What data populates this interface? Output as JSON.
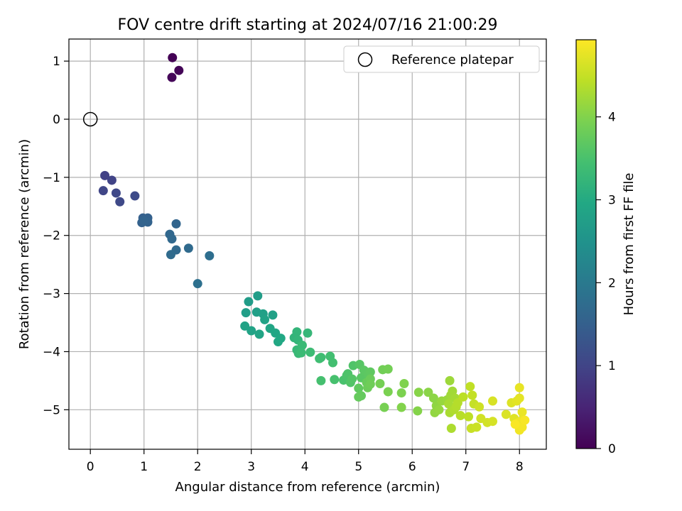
{
  "chart_data": {
    "type": "scatter",
    "title": "FOV centre drift starting at 2024/07/16 21:00:29",
    "xlabel": "Angular distance from reference (arcmin)",
    "ylabel": "Rotation from reference (arcmin)",
    "xlim": [
      -0.4,
      8.5
    ],
    "ylim": [
      -5.68,
      1.38
    ],
    "xticks": [
      0,
      1,
      2,
      3,
      4,
      5,
      6,
      7,
      8
    ],
    "yticks": [
      1,
      0,
      -1,
      -2,
      -3,
      -4,
      -5
    ],
    "grid": true,
    "legend": {
      "label": "Reference platepar",
      "placement": "top-right"
    },
    "colorbar": {
      "label": "Hours from first FF file",
      "range": [
        0,
        4.93
      ],
      "ticks": [
        0,
        1,
        2,
        3,
        4
      ],
      "colormap": "viridis"
    },
    "reference_point": {
      "x": 0,
      "y": 0
    },
    "points": [
      [
        1.53,
        1.06,
        0.02
      ],
      [
        1.65,
        0.84,
        0.05
      ],
      [
        1.52,
        0.72,
        0.08
      ],
      [
        0.27,
        -0.97,
        0.95
      ],
      [
        0.4,
        -1.05,
        0.98
      ],
      [
        0.24,
        -1.23,
        1.02
      ],
      [
        0.48,
        -1.27,
        1.05
      ],
      [
        0.55,
        -1.42,
        1.08
      ],
      [
        0.83,
        -1.32,
        1.12
      ],
      [
        0.98,
        -1.7,
        1.5
      ],
      [
        1.07,
        -1.7,
        1.52
      ],
      [
        0.96,
        -1.78,
        1.54
      ],
      [
        1.07,
        -1.77,
        1.56
      ],
      [
        1.0,
        -1.75,
        1.58
      ],
      [
        1.6,
        -1.8,
        1.6
      ],
      [
        1.48,
        -1.98,
        1.64
      ],
      [
        1.52,
        -2.06,
        1.66
      ],
      [
        1.6,
        -2.25,
        1.68
      ],
      [
        1.83,
        -2.22,
        1.7
      ],
      [
        1.5,
        -2.33,
        1.72
      ],
      [
        2.22,
        -2.35,
        1.78
      ],
      [
        2.0,
        -2.83,
        1.82
      ],
      [
        2.95,
        -3.14,
        2.7
      ],
      [
        3.12,
        -3.04,
        2.72
      ],
      [
        2.9,
        -3.33,
        2.74
      ],
      [
        3.1,
        -3.32,
        2.76
      ],
      [
        3.22,
        -3.35,
        2.78
      ],
      [
        3.4,
        -3.37,
        2.8
      ],
      [
        3.25,
        -3.45,
        2.82
      ],
      [
        2.88,
        -3.56,
        2.84
      ],
      [
        3.0,
        -3.64,
        2.86
      ],
      [
        3.15,
        -3.7,
        2.88
      ],
      [
        3.35,
        -3.6,
        2.9
      ],
      [
        3.45,
        -3.68,
        2.92
      ],
      [
        3.5,
        -3.83,
        2.94
      ],
      [
        3.55,
        -3.77,
        2.96
      ],
      [
        3.8,
        -3.76,
        3.2
      ],
      [
        3.85,
        -3.66,
        3.22
      ],
      [
        3.87,
        -3.8,
        3.24
      ],
      [
        4.05,
        -3.68,
        3.26
      ],
      [
        3.85,
        -3.97,
        3.28
      ],
      [
        3.88,
        -4.03,
        3.3
      ],
      [
        3.95,
        -3.89,
        3.32
      ],
      [
        3.93,
        -4.02,
        3.34
      ],
      [
        4.1,
        -4.01,
        3.36
      ],
      [
        4.3,
        -4.1,
        3.38
      ],
      [
        4.27,
        -4.12,
        3.4
      ],
      [
        4.47,
        -4.08,
        3.42
      ],
      [
        4.52,
        -4.19,
        3.44
      ],
      [
        4.3,
        -4.5,
        3.46
      ],
      [
        4.55,
        -4.48,
        3.48
      ],
      [
        4.72,
        -4.49,
        3.5
      ],
      [
        4.78,
        -4.41,
        3.52
      ],
      [
        4.8,
        -4.38,
        3.54
      ],
      [
        4.9,
        -4.24,
        3.56
      ],
      [
        4.85,
        -4.53,
        3.58
      ],
      [
        4.88,
        -4.47,
        3.6
      ],
      [
        5.02,
        -4.22,
        3.62
      ],
      [
        5.05,
        -4.45,
        3.64
      ],
      [
        5.1,
        -4.32,
        3.66
      ],
      [
        5.18,
        -4.38,
        3.68
      ],
      [
        5.22,
        -4.35,
        3.7
      ],
      [
        5.0,
        -4.63,
        3.72
      ],
      [
        5.05,
        -4.76,
        3.74
      ],
      [
        5.0,
        -4.78,
        3.76
      ],
      [
        5.15,
        -4.53,
        3.78
      ],
      [
        5.22,
        -4.47,
        3.8
      ],
      [
        5.17,
        -4.62,
        3.82
      ],
      [
        5.22,
        -4.56,
        3.84
      ],
      [
        5.45,
        -4.31,
        3.86
      ],
      [
        5.55,
        -4.3,
        3.88
      ],
      [
        5.4,
        -4.55,
        3.9
      ],
      [
        5.48,
        -4.96,
        3.92
      ],
      [
        5.55,
        -4.69,
        3.94
      ],
      [
        5.8,
        -4.71,
        3.96
      ],
      [
        5.85,
        -4.55,
        3.98
      ],
      [
        5.8,
        -4.96,
        4.0
      ],
      [
        6.1,
        -5.02,
        4.02
      ],
      [
        6.12,
        -4.7,
        4.04
      ],
      [
        6.3,
        -4.7,
        4.06
      ],
      [
        6.4,
        -4.8,
        4.08
      ],
      [
        6.45,
        -4.93,
        4.1
      ],
      [
        6.42,
        -5.05,
        4.12
      ],
      [
        6.5,
        -5.0,
        4.14
      ],
      [
        6.55,
        -4.85,
        4.16
      ],
      [
        6.65,
        -4.83,
        4.18
      ],
      [
        6.7,
        -4.5,
        4.2
      ],
      [
        6.72,
        -4.75,
        4.22
      ],
      [
        6.75,
        -4.68,
        4.24
      ],
      [
        6.8,
        -4.8,
        4.26
      ],
      [
        6.68,
        -4.9,
        4.28
      ],
      [
        6.7,
        -5.05,
        4.3
      ],
      [
        6.73,
        -5.32,
        4.32
      ],
      [
        6.78,
        -5.0,
        4.34
      ],
      [
        6.82,
        -4.95,
        4.36
      ],
      [
        6.85,
        -4.88,
        4.38
      ],
      [
        6.9,
        -5.1,
        4.4
      ],
      [
        6.95,
        -4.78,
        4.42
      ],
      [
        7.05,
        -5.12,
        4.44
      ],
      [
        7.08,
        -4.6,
        4.46
      ],
      [
        7.12,
        -4.75,
        4.48
      ],
      [
        7.15,
        -4.9,
        4.5
      ],
      [
        7.1,
        -5.32,
        4.52
      ],
      [
        7.2,
        -5.3,
        4.54
      ],
      [
        7.25,
        -4.95,
        4.56
      ],
      [
        7.28,
        -5.15,
        4.58
      ],
      [
        7.4,
        -5.22,
        4.6
      ],
      [
        7.5,
        -5.2,
        4.62
      ],
      [
        7.5,
        -4.85,
        4.64
      ],
      [
        7.75,
        -5.08,
        4.66
      ],
      [
        7.85,
        -4.88,
        4.68
      ],
      [
        7.9,
        -5.15,
        4.7
      ],
      [
        7.95,
        -4.85,
        4.72
      ],
      [
        8.0,
        -4.8,
        4.74
      ],
      [
        8.0,
        -4.62,
        4.76
      ],
      [
        8.05,
        -5.04,
        4.78
      ],
      [
        8.05,
        -5.18,
        4.8
      ],
      [
        7.98,
        -5.22,
        4.82
      ],
      [
        8.0,
        -5.35,
        4.84
      ],
      [
        8.05,
        -5.3,
        4.86
      ],
      [
        8.1,
        -5.18,
        4.88
      ],
      [
        7.92,
        -5.25,
        4.9
      ]
    ]
  }
}
